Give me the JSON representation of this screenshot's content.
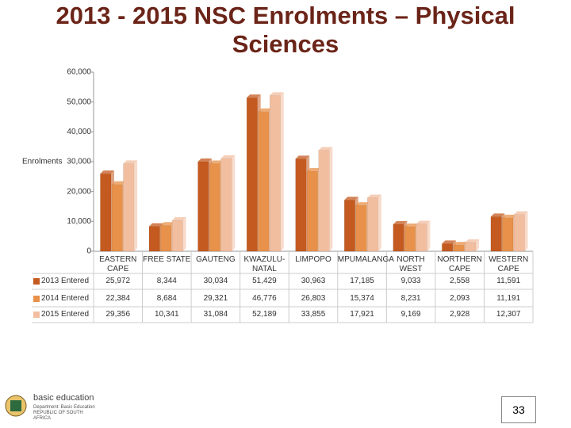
{
  "chart_data": {
    "type": "bar",
    "title": "2013 - 2015 NSC Enrolments – Physical Sciences",
    "y_label": "Enrolments",
    "categories": [
      "EASTERN CAPE",
      "FREE STATE",
      "GAUTENG",
      "KWAZULU-NATAL",
      "LIMPOPO",
      "MPUMALANGA",
      "NORTH WEST",
      "NORTHERN CAPE",
      "WESTERN CAPE"
    ],
    "series": [
      {
        "name": "2013 Entered",
        "color": "#c45a1f",
        "values": [
          25972,
          8344,
          30034,
          51429,
          30963,
          17185,
          9033,
          2558,
          11591
        ],
        "value_labels": [
          "25,972",
          "8,344",
          "30,034",
          "51,429",
          "30,963",
          "17,185",
          "9,033",
          "2,558",
          "11,591"
        ]
      },
      {
        "name": "2014 Entered",
        "color": "#e8914a",
        "values": [
          22384,
          8684,
          29321,
          46776,
          26803,
          15374,
          8231,
          2093,
          11191
        ],
        "value_labels": [
          "22,384",
          "8,684",
          "29,321",
          "46,776",
          "26,803",
          "15,374",
          "8,231",
          "2,093",
          "11,191"
        ]
      },
      {
        "name": "2015 Entered",
        "color": "#f2bea0",
        "values": [
          29356,
          10341,
          31084,
          52189,
          33855,
          17921,
          9169,
          2928,
          12307
        ],
        "value_labels": [
          "29,356",
          "10,341",
          "31,084",
          "52,189",
          "33,855",
          "17,921",
          "9,169",
          "2,928",
          "12,307"
        ]
      }
    ],
    "ylim": [
      0,
      60000
    ],
    "yticks": [
      0,
      {
        "value": 10000,
        "label": "10,000"
      },
      {
        "value": 20000,
        "label": "20,000"
      },
      {
        "value": 30000,
        "label": "30,000"
      },
      {
        "value": 40000,
        "label": "40,000"
      },
      {
        "value": 50000,
        "label": "50,000"
      },
      {
        "value": 60000,
        "label": "60,000"
      }
    ],
    "grid": false
  },
  "footer": {
    "page": "33",
    "logo_title": "basic education",
    "logo_subtitle": "Department: Basic Education REPUBLIC OF SOUTH AFRICA"
  }
}
